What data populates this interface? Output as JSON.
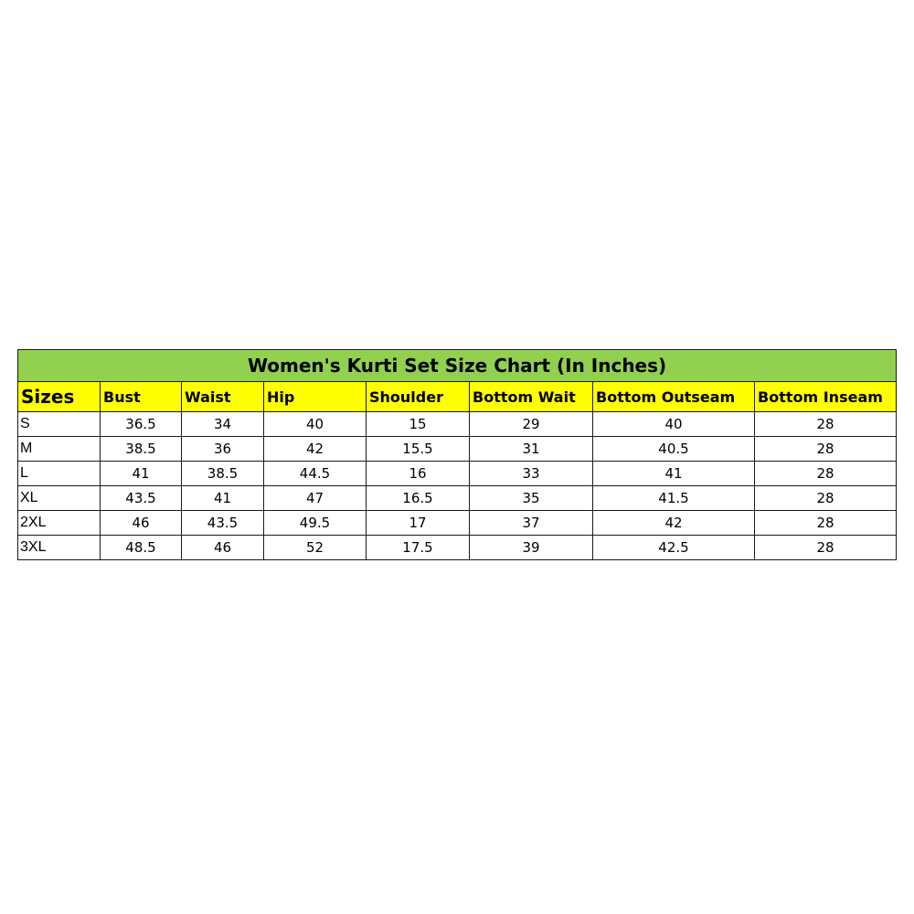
{
  "title": "Women's Kurti Set Size Chart (In Inches)",
  "headers": [
    "Sizes",
    "Bust",
    "Waist",
    "Hip",
    "Shoulder",
    "Bottom Wait",
    "Bottom Outseam",
    "Bottom Inseam"
  ],
  "rows": [
    [
      "S",
      "36.5",
      "34",
      "40",
      "15",
      "29",
      "40",
      "28"
    ],
    [
      "M",
      "38.5",
      "36",
      "42",
      "15.5",
      "31",
      "40.5",
      "28"
    ],
    [
      "L",
      "41",
      "38.5",
      "44.5",
      "16",
      "33",
      "41",
      "28"
    ],
    [
      "XL",
      "43.5",
      "41",
      "47",
      "16.5",
      "35",
      "41.5",
      "28"
    ],
    [
      "2XL",
      "46",
      "43.5",
      "49.5",
      "17",
      "37",
      "42",
      "28"
    ],
    [
      "3XL",
      "48.5",
      "46",
      "52",
      "17.5",
      "39",
      "42.5",
      "28"
    ]
  ],
  "colors": {
    "title_bg": "#92d050",
    "header_bg": "#ffff00"
  }
}
